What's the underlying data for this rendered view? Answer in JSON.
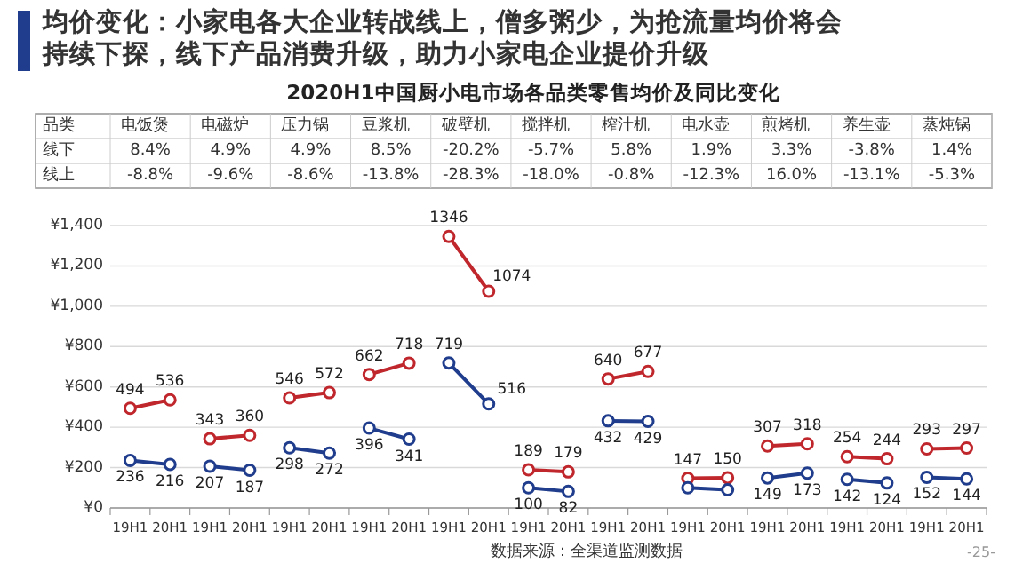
{
  "chart_data": [
    {
      "type": "other",
      "title": "均价变化：小家电各大企业转战线上，僧多粥少，为抢流量均价将会持续下探，线下产品消费升级，助力小家电企业提价升级",
      "subtitle": "2020H1中国厨小电市场各品类零售均价及同比变化",
      "annotations": [
        "品类"
      ],
      "categories": [
        "电饭煲",
        "电磁炉",
        "压力锅",
        "豆浆机",
        "破壁机",
        "搅拌机",
        "榨汁机",
        "电水壶",
        "煎烤机",
        "养生壶",
        "蒸炖锅"
      ],
      "y_categories": [
        "线下",
        "线上"
      ],
      "cell_labels": [
        [
          "8.4%",
          "4.9%",
          "4.9%",
          "8.5%",
          "-20.2%",
          "-5.7%",
          "5.8%",
          "1.9%",
          "3.3%",
          "-3.8%",
          "1.4%"
        ],
        [
          "-8.8%",
          "-9.6%",
          "-8.6%",
          "-13.8%",
          "-28.3%",
          "-18.0%",
          "-0.8%",
          "-12.3%",
          "16.0%",
          "-13.1%",
          "-5.3%"
        ]
      ]
    },
    {
      "type": "line",
      "marker": "circle",
      "grid": "y",
      "ylim": [
        0,
        1400
      ],
      "yticks": [
        {
          "value": 0,
          "label": "¥0"
        },
        {
          "value": 200,
          "label": "¥200"
        },
        {
          "value": 400,
          "label": "¥400"
        },
        {
          "value": 600,
          "label": "¥600"
        },
        {
          "value": 800,
          "label": "¥800"
        },
        {
          "value": 1000,
          "label": "¥1,000"
        },
        {
          "value": 1200,
          "label": "¥1,200"
        },
        {
          "value": 1400,
          "label": "¥1,400"
        }
      ],
      "categories": [
        "19H1",
        "20H1",
        "19H1",
        "20H1",
        "19H1",
        "20H1",
        "19H1",
        "20H1",
        "19H1",
        "20H1",
        "19H1",
        "20H1",
        "19H1",
        "20H1",
        "19H1",
        "20H1",
        "19H1",
        "20H1",
        "19H1",
        "20H1",
        "19H1",
        "20H1"
      ],
      "series": [
        {
          "color": "#c0272d",
          "values": [
            494,
            536,
            null,
            null,
            null,
            null,
            null,
            null,
            null,
            null,
            null,
            null,
            null,
            null,
            null,
            null,
            null,
            null,
            null,
            null,
            null,
            null
          ],
          "value_labels": [
            "494",
            "536",
            null,
            null,
            null,
            null,
            null,
            null,
            null,
            null,
            null,
            null,
            null,
            null,
            null,
            null,
            null,
            null,
            null,
            null,
            null,
            null
          ]
        },
        {
          "color": "#1f3d8c",
          "values": [
            236,
            216,
            null,
            null,
            null,
            null,
            null,
            null,
            null,
            null,
            null,
            null,
            null,
            null,
            null,
            null,
            null,
            null,
            null,
            null,
            null,
            null
          ],
          "value_labels": [
            "236",
            "216",
            null,
            null,
            null,
            null,
            null,
            null,
            null,
            null,
            null,
            null,
            null,
            null,
            null,
            null,
            null,
            null,
            null,
            null,
            null,
            null
          ]
        },
        {
          "color": "#c0272d",
          "values": [
            null,
            null,
            343,
            360,
            null,
            null,
            null,
            null,
            null,
            null,
            null,
            null,
            null,
            null,
            null,
            null,
            null,
            null,
            null,
            null,
            null,
            null
          ],
          "value_labels": [
            null,
            null,
            "343",
            "360",
            null,
            null,
            null,
            null,
            null,
            null,
            null,
            null,
            null,
            null,
            null,
            null,
            null,
            null,
            null,
            null,
            null,
            null
          ]
        },
        {
          "color": "#1f3d8c",
          "values": [
            null,
            null,
            207,
            187,
            null,
            null,
            null,
            null,
            null,
            null,
            null,
            null,
            null,
            null,
            null,
            null,
            null,
            null,
            null,
            null,
            null,
            null
          ],
          "value_labels": [
            null,
            null,
            "207",
            "187",
            null,
            null,
            null,
            null,
            null,
            null,
            null,
            null,
            null,
            null,
            null,
            null,
            null,
            null,
            null,
            null,
            null,
            null
          ]
        },
        {
          "color": "#c0272d",
          "values": [
            null,
            null,
            null,
            null,
            546,
            572,
            null,
            null,
            null,
            null,
            null,
            null,
            null,
            null,
            null,
            null,
            null,
            null,
            null,
            null,
            null,
            null
          ],
          "value_labels": [
            null,
            null,
            null,
            null,
            "546",
            "572",
            null,
            null,
            null,
            null,
            null,
            null,
            null,
            null,
            null,
            null,
            null,
            null,
            null,
            null,
            null,
            null
          ]
        },
        {
          "color": "#1f3d8c",
          "values": [
            null,
            null,
            null,
            null,
            298,
            272,
            null,
            null,
            null,
            null,
            null,
            null,
            null,
            null,
            null,
            null,
            null,
            null,
            null,
            null,
            null,
            null
          ],
          "value_labels": [
            null,
            null,
            null,
            null,
            "298",
            "272",
            null,
            null,
            null,
            null,
            null,
            null,
            null,
            null,
            null,
            null,
            null,
            null,
            null,
            null,
            null,
            null
          ]
        },
        {
          "color": "#c0272d",
          "values": [
            null,
            null,
            null,
            null,
            null,
            null,
            662,
            718,
            null,
            null,
            null,
            null,
            null,
            null,
            null,
            null,
            null,
            null,
            null,
            null,
            null,
            null
          ],
          "value_labels": [
            null,
            null,
            null,
            null,
            null,
            null,
            "662",
            "718",
            null,
            null,
            null,
            null,
            null,
            null,
            null,
            null,
            null,
            null,
            null,
            null,
            null,
            null
          ]
        },
        {
          "color": "#1f3d8c",
          "values": [
            null,
            null,
            null,
            null,
            null,
            null,
            396,
            341,
            null,
            null,
            null,
            null,
            null,
            null,
            null,
            null,
            null,
            null,
            null,
            null,
            null,
            null
          ],
          "value_labels": [
            null,
            null,
            null,
            null,
            null,
            null,
            "396",
            "341",
            null,
            null,
            null,
            null,
            null,
            null,
            null,
            null,
            null,
            null,
            null,
            null,
            null,
            null
          ]
        },
        {
          "color": "#c0272d",
          "values": [
            null,
            null,
            null,
            null,
            null,
            null,
            null,
            null,
            1346,
            1074,
            null,
            null,
            null,
            null,
            null,
            null,
            null,
            null,
            null,
            null,
            null,
            null
          ],
          "value_labels": [
            null,
            null,
            null,
            null,
            null,
            null,
            null,
            null,
            "1346",
            "1074",
            null,
            null,
            null,
            null,
            null,
            null,
            null,
            null,
            null,
            null,
            null,
            null
          ]
        },
        {
          "color": "#1f3d8c",
          "values": [
            null,
            null,
            null,
            null,
            null,
            null,
            null,
            null,
            719,
            516,
            null,
            null,
            null,
            null,
            null,
            null,
            null,
            null,
            null,
            null,
            null,
            null
          ],
          "value_labels": [
            null,
            null,
            null,
            null,
            null,
            null,
            null,
            null,
            "719",
            "516",
            null,
            null,
            null,
            null,
            null,
            null,
            null,
            null,
            null,
            null,
            null,
            null
          ]
        },
        {
          "color": "#c0272d",
          "values": [
            null,
            null,
            null,
            null,
            null,
            null,
            null,
            null,
            null,
            null,
            189,
            179,
            null,
            null,
            null,
            null,
            null,
            null,
            null,
            null,
            null,
            null
          ],
          "value_labels": [
            null,
            null,
            null,
            null,
            null,
            null,
            null,
            null,
            null,
            null,
            "189",
            "179",
            null,
            null,
            null,
            null,
            null,
            null,
            null,
            null,
            null,
            null
          ]
        },
        {
          "color": "#1f3d8c",
          "values": [
            null,
            null,
            null,
            null,
            null,
            null,
            null,
            null,
            null,
            null,
            100,
            82,
            null,
            null,
            null,
            null,
            null,
            null,
            null,
            null,
            null,
            null
          ],
          "value_labels": [
            null,
            null,
            null,
            null,
            null,
            null,
            null,
            null,
            null,
            null,
            "100",
            "82",
            null,
            null,
            null,
            null,
            null,
            null,
            null,
            null,
            null,
            null
          ]
        },
        {
          "color": "#c0272d",
          "values": [
            null,
            null,
            null,
            null,
            null,
            null,
            null,
            null,
            null,
            null,
            null,
            null,
            640,
            677,
            null,
            null,
            null,
            null,
            null,
            null,
            null,
            null
          ],
          "value_labels": [
            null,
            null,
            null,
            null,
            null,
            null,
            null,
            null,
            null,
            null,
            null,
            null,
            "640",
            "677",
            null,
            null,
            null,
            null,
            null,
            null,
            null,
            null
          ]
        },
        {
          "color": "#1f3d8c",
          "values": [
            null,
            null,
            null,
            null,
            null,
            null,
            null,
            null,
            null,
            null,
            null,
            null,
            432,
            429,
            null,
            null,
            null,
            null,
            null,
            null,
            null,
            null
          ],
          "value_labels": [
            null,
            null,
            null,
            null,
            null,
            null,
            null,
            null,
            null,
            null,
            null,
            null,
            "432",
            "429",
            null,
            null,
            null,
            null,
            null,
            null,
            null,
            null
          ]
        },
        {
          "color": "#c0272d",
          "values": [
            null,
            null,
            null,
            null,
            null,
            null,
            null,
            null,
            null,
            null,
            null,
            null,
            null,
            null,
            147,
            150,
            null,
            null,
            null,
            null,
            null,
            null
          ],
          "value_labels": [
            null,
            null,
            null,
            null,
            null,
            null,
            null,
            null,
            null,
            null,
            null,
            null,
            null,
            null,
            "147",
            "150",
            null,
            null,
            null,
            null,
            null,
            null
          ]
        },
        {
          "color": "#1f3d8c",
          "values": [
            null,
            null,
            null,
            null,
            null,
            null,
            null,
            null,
            null,
            null,
            null,
            null,
            null,
            null,
            100,
            90,
            null,
            null,
            null,
            null,
            null,
            null
          ]
        },
        {
          "color": "#c0272d",
          "values": [
            null,
            null,
            null,
            null,
            null,
            null,
            null,
            null,
            null,
            null,
            null,
            null,
            null,
            null,
            null,
            null,
            307,
            318,
            null,
            null,
            null,
            null
          ],
          "value_labels": [
            null,
            null,
            null,
            null,
            null,
            null,
            null,
            null,
            null,
            null,
            null,
            null,
            null,
            null,
            null,
            null,
            "307",
            "318",
            null,
            null,
            null,
            null
          ]
        },
        {
          "color": "#1f3d8c",
          "values": [
            null,
            null,
            null,
            null,
            null,
            null,
            null,
            null,
            null,
            null,
            null,
            null,
            null,
            null,
            null,
            null,
            149,
            173,
            null,
            null,
            null,
            null
          ],
          "value_labels": [
            null,
            null,
            null,
            null,
            null,
            null,
            null,
            null,
            null,
            null,
            null,
            null,
            null,
            null,
            null,
            null,
            "149",
            "173",
            null,
            null,
            null,
            null
          ]
        },
        {
          "color": "#c0272d",
          "values": [
            null,
            null,
            null,
            null,
            null,
            null,
            null,
            null,
            null,
            null,
            null,
            null,
            null,
            null,
            null,
            null,
            null,
            null,
            254,
            244,
            null,
            null
          ],
          "value_labels": [
            null,
            null,
            null,
            null,
            null,
            null,
            null,
            null,
            null,
            null,
            null,
            null,
            null,
            null,
            null,
            null,
            null,
            null,
            "254",
            "244",
            null,
            null
          ]
        },
        {
          "color": "#1f3d8c",
          "values": [
            null,
            null,
            null,
            null,
            null,
            null,
            null,
            null,
            null,
            null,
            null,
            null,
            null,
            null,
            null,
            null,
            null,
            null,
            142,
            124,
            null,
            null
          ],
          "value_labels": [
            null,
            null,
            null,
            null,
            null,
            null,
            null,
            null,
            null,
            null,
            null,
            null,
            null,
            null,
            null,
            null,
            null,
            null,
            "142",
            "124",
            null,
            null
          ]
        },
        {
          "color": "#c0272d",
          "values": [
            null,
            null,
            null,
            null,
            null,
            null,
            null,
            null,
            null,
            null,
            null,
            null,
            null,
            null,
            null,
            null,
            null,
            null,
            null,
            null,
            293,
            297
          ],
          "value_labels": [
            null,
            null,
            null,
            null,
            null,
            null,
            null,
            null,
            null,
            null,
            null,
            null,
            null,
            null,
            null,
            null,
            null,
            null,
            null,
            null,
            "293",
            "297"
          ]
        },
        {
          "color": "#1f3d8c",
          "values": [
            null,
            null,
            null,
            null,
            null,
            null,
            null,
            null,
            null,
            null,
            null,
            null,
            null,
            null,
            null,
            null,
            null,
            null,
            null,
            null,
            152,
            144
          ],
          "value_labels": [
            null,
            null,
            null,
            null,
            null,
            null,
            null,
            null,
            null,
            null,
            null,
            null,
            null,
            null,
            null,
            null,
            null,
            null,
            null,
            null,
            "152",
            "144"
          ]
        }
      ],
      "annotations": [
        "数据来源：全渠道监测数据",
        "-25-"
      ]
    }
  ]
}
